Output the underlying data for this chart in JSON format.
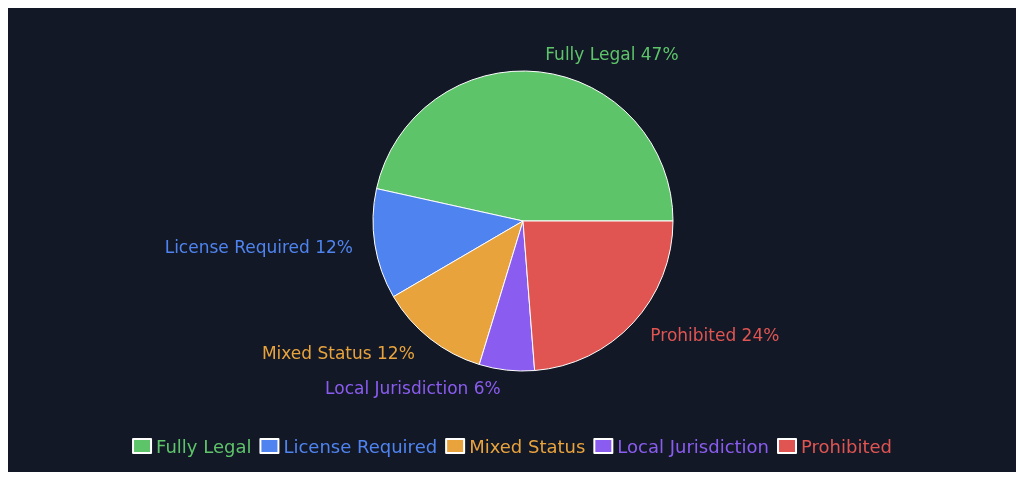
{
  "chart_data": {
    "type": "pie",
    "categories": [
      "Fully Legal",
      "License Required",
      "Mixed Status",
      "Local Jurisdiction",
      "Prohibited"
    ],
    "values": [
      47,
      12,
      12,
      6,
      24
    ],
    "value_labels": [
      "47%",
      "12%",
      "12%",
      "6%",
      "24%"
    ],
    "colors": [
      "#5ec46a",
      "#4f84f0",
      "#e9a33c",
      "#8b5cf0",
      "#e05552"
    ],
    "legend": "bottom"
  }
}
